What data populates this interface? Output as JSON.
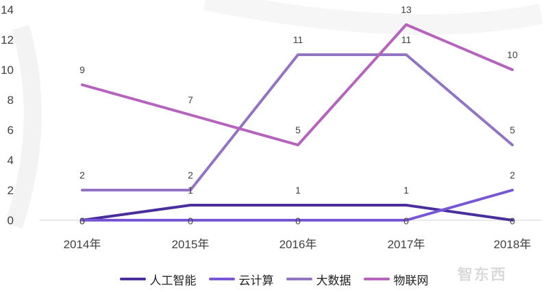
{
  "chart_data": {
    "type": "line",
    "categories": [
      "2014年",
      "2015年",
      "2016年",
      "2017年",
      "2018年"
    ],
    "series": [
      {
        "name": "人工智能",
        "values": [
          0,
          1,
          1,
          1,
          0
        ],
        "color": "#4a2f9c"
      },
      {
        "name": "云计算",
        "values": [
          0,
          0,
          0,
          0,
          2
        ],
        "color": "#7857d6"
      },
      {
        "name": "大数据",
        "values": [
          2,
          2,
          11,
          11,
          5
        ],
        "color": "#9273c4"
      },
      {
        "name": "物联网",
        "values": [
          9,
          7,
          5,
          13,
          10
        ],
        "color": "#b563bd"
      }
    ],
    "yticks": [
      "0",
      "2",
      "4",
      "6",
      "8",
      "10",
      "12",
      "14"
    ],
    "ylim": [
      0,
      14
    ],
    "grid": false,
    "legend_position": "bottom"
  },
  "watermark": {
    "text": "智东西"
  }
}
